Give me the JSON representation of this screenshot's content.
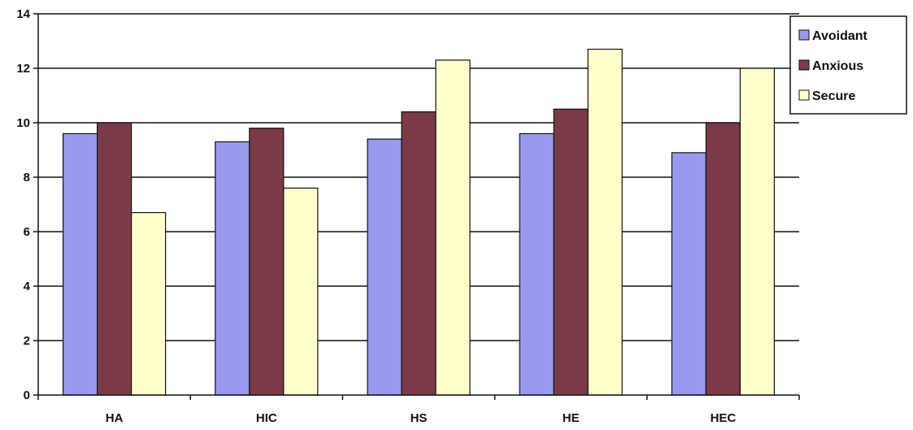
{
  "chart_data": {
    "type": "bar",
    "categories": [
      "HA",
      "HIC",
      "HS",
      "HE",
      "HEC"
    ],
    "series": [
      {
        "name": "Avoidant",
        "values": [
          9.6,
          9.3,
          9.4,
          9.6,
          8.9
        ],
        "color": "#9999ee"
      },
      {
        "name": "Anxious",
        "values": [
          10.0,
          9.8,
          10.4,
          10.5,
          10.0
        ],
        "color": "#7a3b46"
      },
      {
        "name": "Secure",
        "values": [
          6.7,
          7.6,
          12.3,
          12.7,
          12.0
        ],
        "color": "#ffffcc"
      }
    ],
    "title": "",
    "xlabel": "",
    "ylabel": "",
    "ylim": [
      0,
      14
    ],
    "yticks": [
      "0",
      "2",
      "4",
      "6",
      "8",
      "10",
      "12",
      "14"
    ],
    "grid": true,
    "legend_position": "top-right"
  }
}
